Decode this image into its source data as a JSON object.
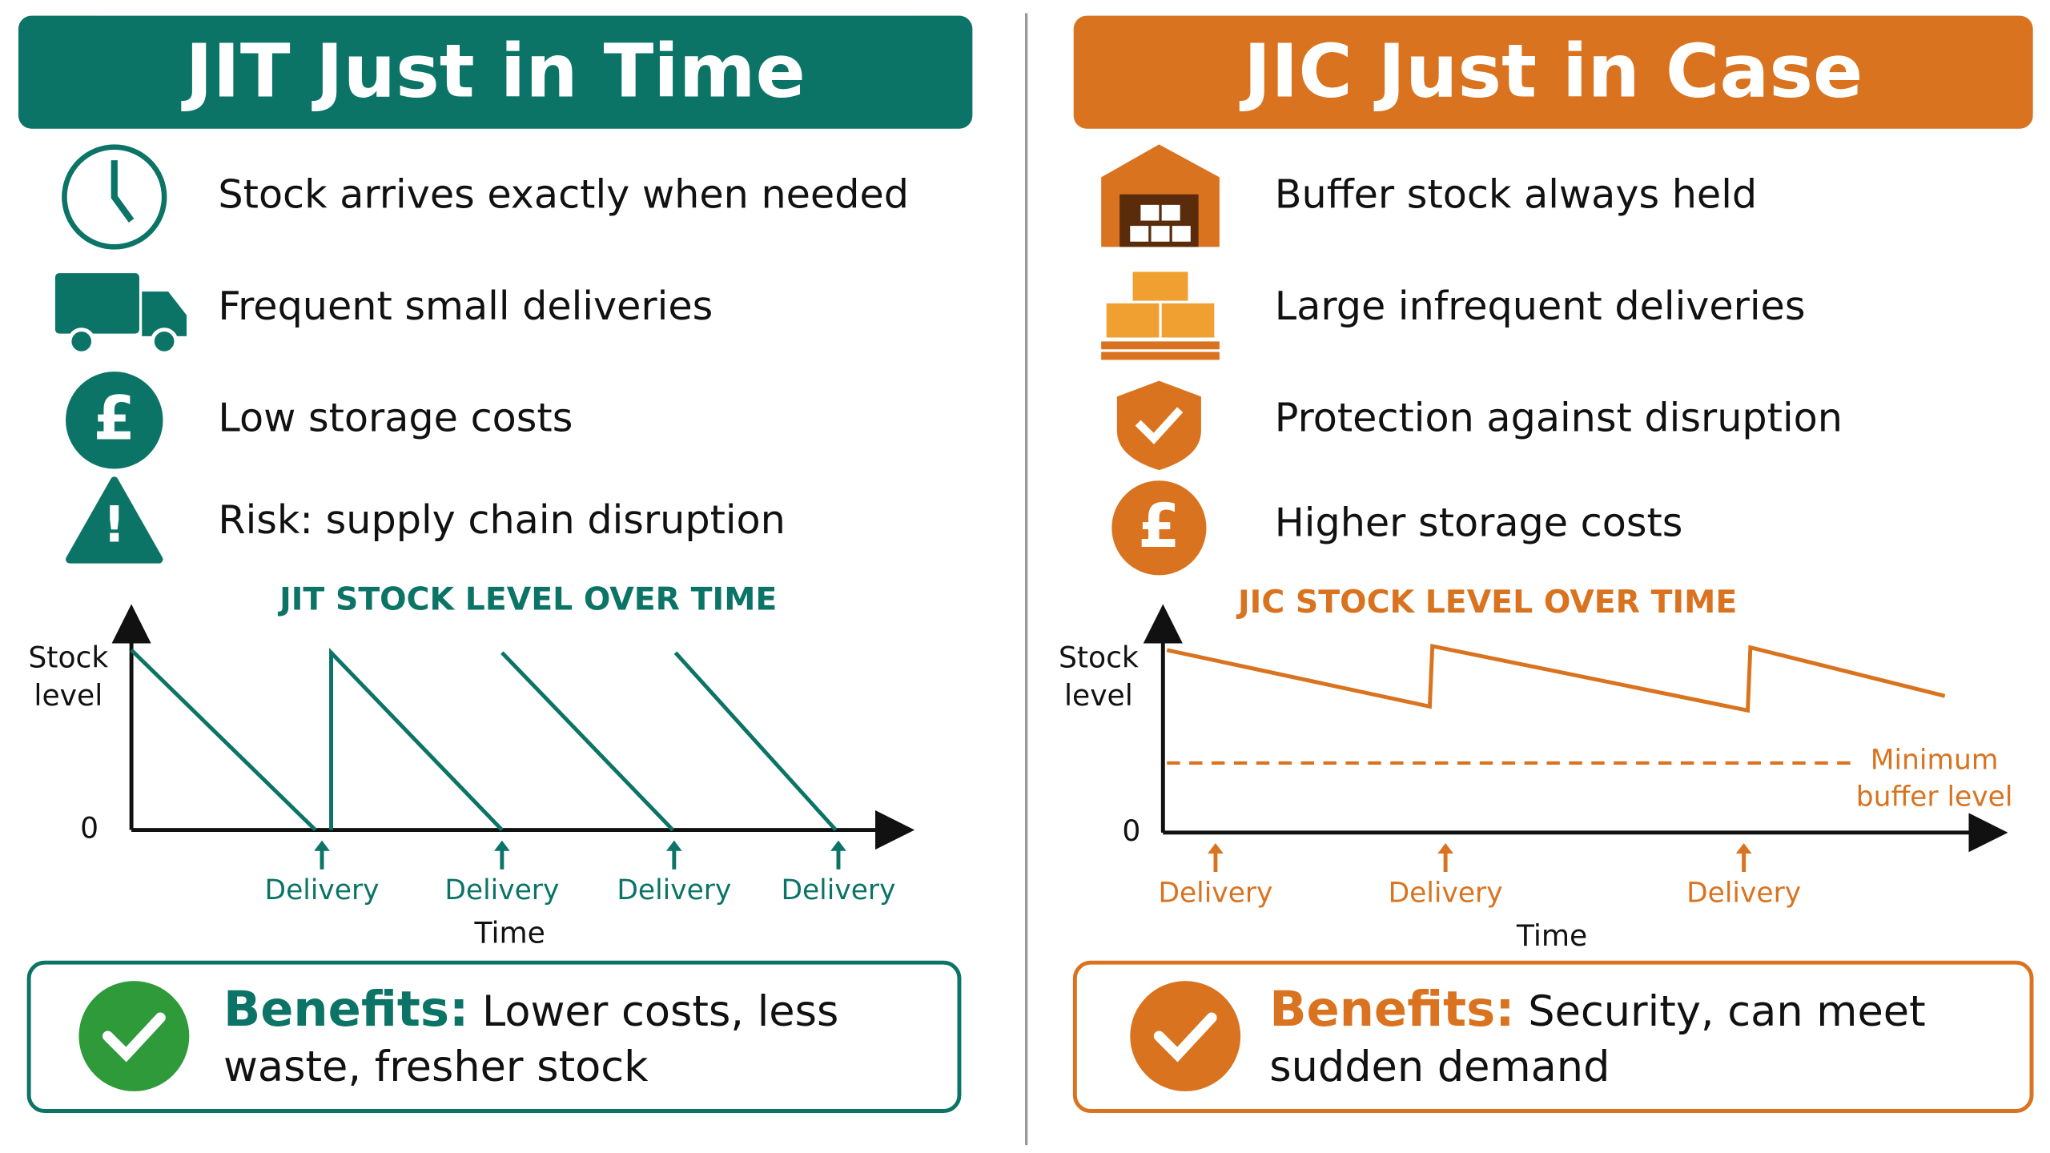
{
  "left": {
    "title": "JIT Just in Time",
    "items": [
      "Stock arrives exactly when needed",
      "Frequent small deliveries",
      "Low storage costs",
      "Risk: supply chain disruption"
    ],
    "chart": {
      "title": "JIT STOCK LEVEL OVER TIME",
      "y_label": [
        "Stock",
        "level"
      ],
      "zero": "0",
      "x_label": "Time",
      "markers": [
        "Delivery",
        "Delivery",
        "Delivery",
        "Delivery"
      ]
    },
    "benefits": {
      "label": "Benefits:",
      "text": "Lower costs, less waste, fresher stock"
    }
  },
  "right": {
    "title": "JIC Just in Case",
    "items": [
      "Buffer stock always held",
      "Large infrequent deliveries",
      "Protection against disruption",
      "Higher storage costs"
    ],
    "chart": {
      "title": "JIC STOCK LEVEL OVER TIME",
      "y_label": [
        "Stock",
        "level"
      ],
      "zero": "0",
      "x_label": "Time",
      "markers": [
        "Delivery",
        "Delivery",
        "Delivery"
      ],
      "threshold_label": [
        "Minimum",
        "buffer level"
      ]
    },
    "benefits": {
      "label": "Benefits:",
      "text": "Security, can meet sudden demand"
    }
  }
}
